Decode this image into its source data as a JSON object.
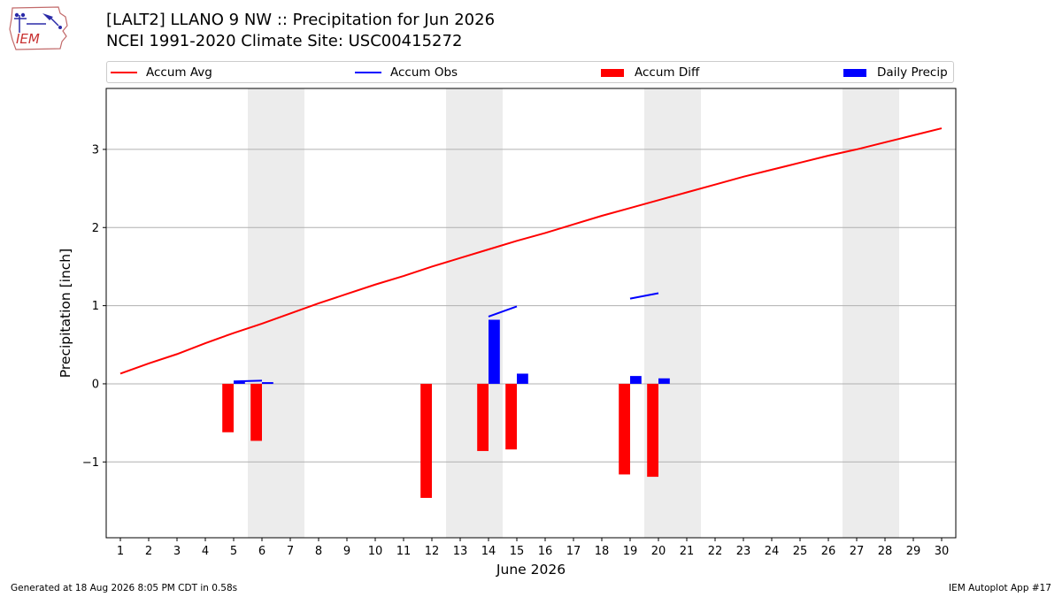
{
  "logo": {
    "text": "IEM"
  },
  "header": {
    "title_line1": "[LALT2] LLANO 9 NW :: Precipitation for Jun 2026",
    "title_line2": "NCEI 1991-2020 Climate Site: USC00415272"
  },
  "legend": {
    "position": "top, above plot, spanning full width",
    "items": [
      {
        "label": "Accum Avg",
        "kind": "line",
        "color": "#ff0000"
      },
      {
        "label": "Accum Obs",
        "kind": "line",
        "color": "#0000ff"
      },
      {
        "label": "Accum Diff",
        "kind": "patch",
        "color": "#ff0000"
      },
      {
        "label": "Daily Precip",
        "kind": "patch",
        "color": "#0000ff"
      }
    ]
  },
  "chart_data": {
    "type": "bar",
    "xlabel": "June 2026",
    "ylabel": "Precipitation [inch]",
    "xlim": [
      0.5,
      30.5
    ],
    "ylim": [
      -1.97,
      3.78
    ],
    "x_ticks": [
      1,
      2,
      3,
      4,
      5,
      6,
      7,
      8,
      9,
      10,
      11,
      12,
      13,
      14,
      15,
      16,
      17,
      18,
      19,
      20,
      21,
      22,
      23,
      24,
      25,
      26,
      27,
      28,
      29,
      30
    ],
    "y_ticks": [
      -1,
      0,
      1,
      2,
      3
    ],
    "y_tick_labels": [
      "−1",
      "0",
      "1",
      "2",
      "3"
    ],
    "grid": "horizontal",
    "weekend_shading": [
      [
        6,
        7
      ],
      [
        13,
        14
      ],
      [
        20,
        21
      ],
      [
        27,
        28
      ]
    ],
    "shading_color": "#ececec",
    "series": [
      {
        "name": "Accum Avg",
        "type": "line",
        "color": "#ff0000",
        "x": [
          1,
          2,
          3,
          4,
          5,
          6,
          7,
          8,
          9,
          10,
          11,
          12,
          13,
          14,
          15,
          16,
          17,
          18,
          19,
          20,
          21,
          22,
          23,
          24,
          25,
          26,
          27,
          28,
          29,
          30
        ],
        "values": [
          0.13,
          0.26,
          0.38,
          0.52,
          0.65,
          0.77,
          0.9,
          1.03,
          1.15,
          1.27,
          1.38,
          1.5,
          1.61,
          1.72,
          1.83,
          1.93,
          2.04,
          2.15,
          2.25,
          2.35,
          2.45,
          2.55,
          2.65,
          2.74,
          2.83,
          2.92,
          3.0,
          3.09,
          3.18,
          3.27
        ]
      },
      {
        "name": "Accum Obs",
        "type": "line-segments",
        "color": "#0000ff",
        "segments": [
          {
            "x": [
              5,
              6
            ],
            "values": [
              0.03,
              0.04
            ]
          },
          {
            "x": [
              6,
              6.4
            ],
            "values": [
              0.01,
              0.01
            ]
          },
          {
            "x": [
              14,
              15
            ],
            "values": [
              0.86,
              0.99
            ]
          },
          {
            "x": [
              19,
              20
            ],
            "values": [
              1.09,
              1.16
            ]
          }
        ]
      },
      {
        "name": "Accum Diff",
        "type": "bar",
        "color": "#ff0000",
        "x": [
          5,
          6,
          12,
          14,
          15,
          19,
          20
        ],
        "values": [
          -0.62,
          -0.73,
          -1.46,
          -0.86,
          -0.84,
          -1.16,
          -1.19
        ]
      },
      {
        "name": "Daily Precip",
        "type": "bar",
        "color": "#0000ff",
        "x": [
          5,
          14,
          15,
          19,
          20
        ],
        "values": [
          0.03,
          0.82,
          0.13,
          0.1,
          0.07
        ]
      }
    ]
  },
  "footer": {
    "generated": "Generated at 18 Aug 2026 8:05 PM CDT in 0.58s",
    "app": "IEM Autoplot App #17"
  }
}
